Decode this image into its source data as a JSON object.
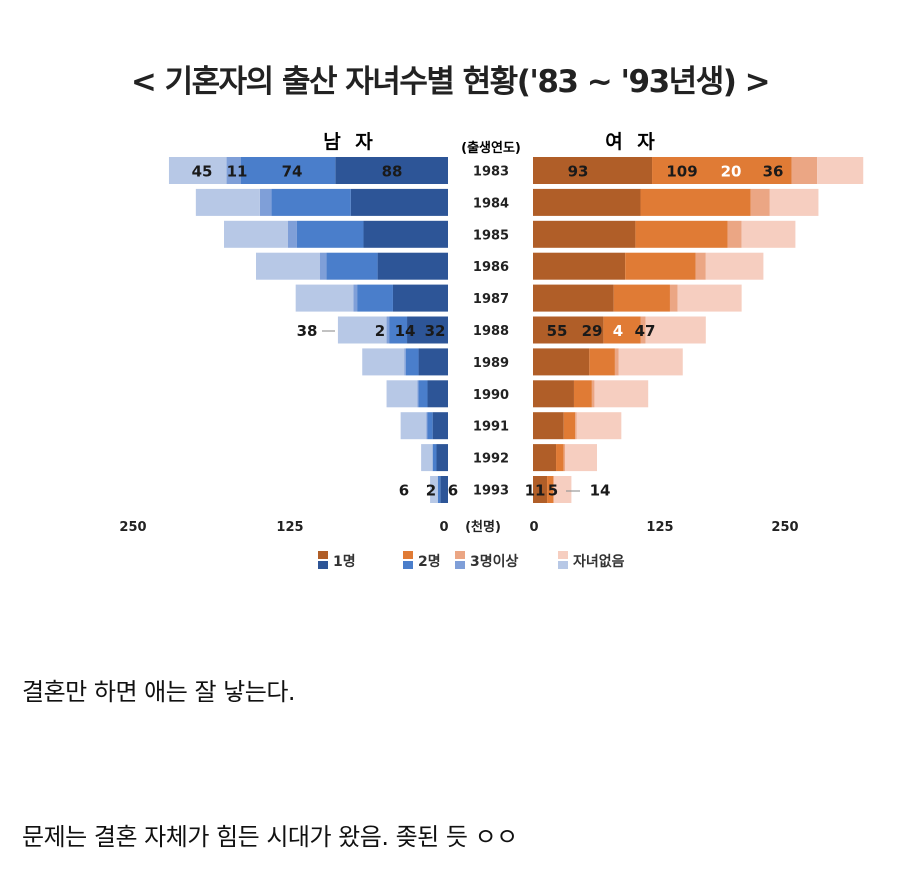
{
  "chart_data": {
    "type": "bar",
    "title": "< 기혼자의 출산 자녀수별 현황('83 ~ '93년생) >",
    "left_panel_label": "남 자",
    "right_panel_label": "여 자",
    "category_axis_label": "(출생연도)",
    "unit_label": "(천명)",
    "categories": [
      "1983",
      "1984",
      "1985",
      "1986",
      "1987",
      "1988",
      "1989",
      "1990",
      "1991",
      "1992",
      "1993"
    ],
    "male": {
      "colors": [
        "#2d5597",
        "#4a7ecb",
        "#7f9fd8",
        "#b7c8e6"
      ],
      "series": [
        {
          "name": "1명",
          "values": [
            88,
            76,
            66,
            55,
            43,
            32,
            23,
            16,
            12,
            9,
            6
          ]
        },
        {
          "name": "2명",
          "values": [
            74,
            62,
            52,
            40,
            28,
            14,
            10,
            7,
            4,
            3,
            2
          ]
        },
        {
          "name": "3명이상",
          "values": [
            11,
            9,
            7,
            5,
            3,
            2,
            1,
            1,
            1,
            0,
            0
          ]
        },
        {
          "name": "자녀없음",
          "values": [
            45,
            50,
            50,
            50,
            45,
            38,
            33,
            24,
            20,
            9,
            6
          ]
        }
      ]
    },
    "female": {
      "colors": [
        "#b05e28",
        "#e07b35",
        "#eba684",
        "#f6cec0"
      ],
      "series": [
        {
          "name": "1명",
          "values": [
            93,
            84,
            80,
            72,
            63,
            55,
            44,
            32,
            24,
            18,
            11
          ]
        },
        {
          "name": "2명",
          "values": [
            109,
            86,
            72,
            55,
            44,
            29,
            20,
            14,
            9,
            6,
            5
          ]
        },
        {
          "name": "3명이상",
          "values": [
            20,
            15,
            11,
            8,
            6,
            4,
            3,
            2,
            1,
            1,
            0
          ]
        },
        {
          "name": "자녀없음",
          "values": [
            36,
            38,
            42,
            45,
            50,
            47,
            50,
            42,
            35,
            25,
            14
          ]
        }
      ]
    },
    "data_labels": {
      "male_1983": [
        "45",
        "11",
        "74",
        "88"
      ],
      "female_1983": [
        "93",
        "109",
        "20",
        "36"
      ],
      "male_1988": [
        "38",
        "2",
        "14",
        "32"
      ],
      "female_1988": [
        "55",
        "29",
        "4",
        "47"
      ],
      "male_1993": [
        "6",
        "2",
        "6"
      ],
      "female_1993": [
        "11",
        "5",
        "14"
      ]
    },
    "x_ticks_left": [
      "250",
      "125",
      "0"
    ],
    "x_ticks_right": [
      "0",
      "125",
      "250"
    ],
    "xlim": [
      0,
      250
    ],
    "legend": [
      {
        "label": "1명"
      },
      {
        "label": "2명"
      },
      {
        "label": "3명이상"
      },
      {
        "label": "자녀없음"
      }
    ],
    "legend_position": "bottom"
  },
  "captions": {
    "line1": "결혼만 하면 애는 잘 낳는다.",
    "line2": "문제는 결혼 자체가 힘든 시대가 왔음. 좆된 듯 ㅇㅇ"
  }
}
